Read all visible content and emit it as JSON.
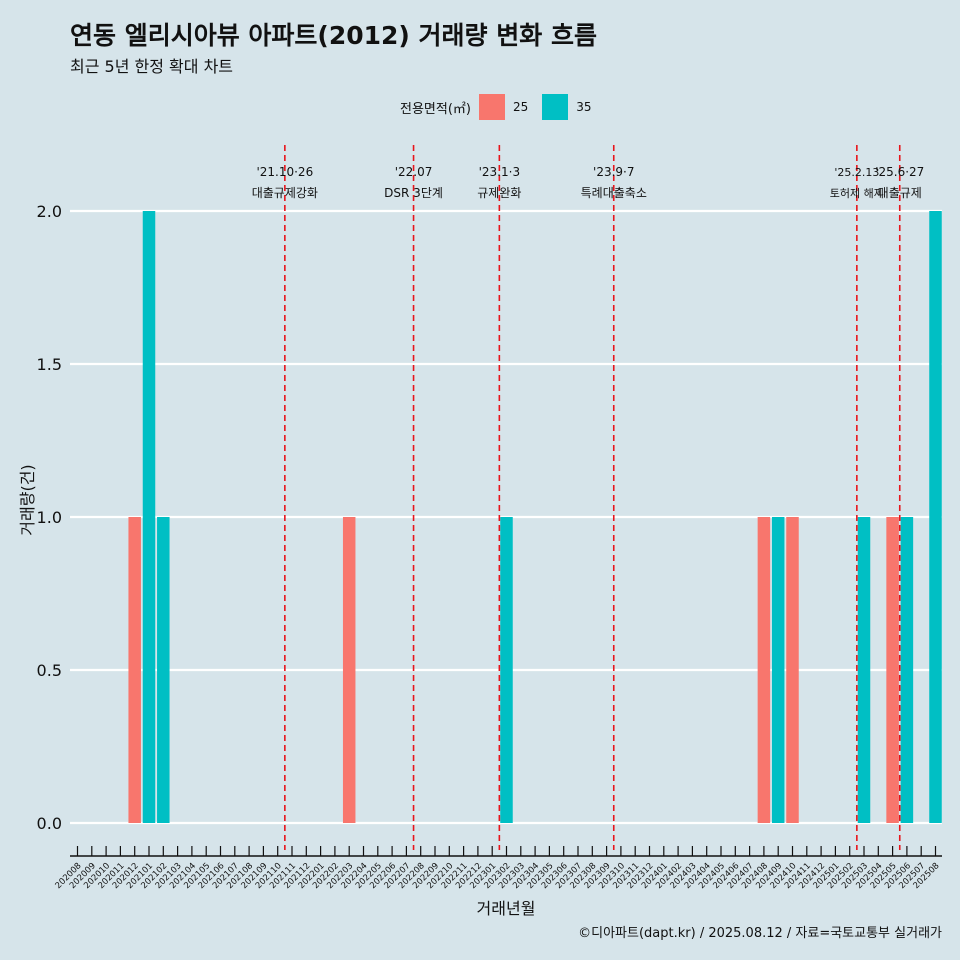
{
  "header": {
    "title": "연동 엘리시아뷰 아파트(2012) 거래량 변화 흐름",
    "subtitle": "최근 5년 한정 확대 차트"
  },
  "legend": {
    "title": "전용면적(㎡)",
    "items": [
      {
        "label": "25",
        "color": "#F8766D"
      },
      {
        "label": "35",
        "color": "#00BFC4"
      }
    ]
  },
  "caption": "©디아파트(dapt.kr) / 2025.08.12 / 자료=국토교통부 실거래가",
  "chart_data": {
    "type": "bar",
    "xlabel": "거래년월",
    "ylabel": "거래량(건)",
    "ylim": [
      0,
      2
    ],
    "yticks": [
      "0.0",
      "0.5",
      "1.0",
      "1.5",
      "2.0"
    ],
    "grid": true,
    "legend_position": "top",
    "categories": [
      "202008",
      "202009",
      "202010",
      "202011",
      "202012",
      "202101",
      "202102",
      "202103",
      "202104",
      "202105",
      "202106",
      "202107",
      "202108",
      "202109",
      "202110",
      "202111",
      "202112",
      "202201",
      "202202",
      "202203",
      "202204",
      "202205",
      "202206",
      "202207",
      "202208",
      "202209",
      "202210",
      "202211",
      "202212",
      "202301",
      "202302",
      "202303",
      "202304",
      "202305",
      "202306",
      "202307",
      "202308",
      "202309",
      "202310",
      "202311",
      "202312",
      "202401",
      "202402",
      "202403",
      "202404",
      "202405",
      "202406",
      "202407",
      "202408",
      "202409",
      "202410",
      "202411",
      "202412",
      "202501",
      "202502",
      "202503",
      "202504",
      "202505",
      "202506",
      "202507",
      "202508"
    ],
    "series": [
      {
        "name": "25",
        "color": "#F8766D",
        "points": [
          {
            "x": "202012",
            "y": 1
          },
          {
            "x": "202203",
            "y": 1
          },
          {
            "x": "202408",
            "y": 1
          },
          {
            "x": "202410",
            "y": 1
          },
          {
            "x": "202505",
            "y": 1
          }
        ]
      },
      {
        "name": "35",
        "color": "#00BFC4",
        "points": [
          {
            "x": "202101",
            "y": 2
          },
          {
            "x": "202102",
            "y": 1
          },
          {
            "x": "202302",
            "y": 1
          },
          {
            "x": "202409",
            "y": 1
          },
          {
            "x": "202503",
            "y": 1
          },
          {
            "x": "202506",
            "y": 1
          },
          {
            "x": "202508",
            "y": 2
          }
        ]
      }
    ],
    "annotations": [
      {
        "x": 14.5,
        "date": "'21.10·26",
        "text": "대출규제강화"
      },
      {
        "x": 23.5,
        "date": "'22.07",
        "text": "DSR 3단계"
      },
      {
        "x": 29.5,
        "date": "'23.1·3",
        "text": "규제완화"
      },
      {
        "x": 37.5,
        "date": "'23.9·7",
        "text": "특례대출축소"
      },
      {
        "x": 54.5,
        "date": "'25.2.13",
        "text": "토허제 해제"
      },
      {
        "x": 57.5,
        "date": "'25.6·27",
        "text": "대출규제"
      }
    ]
  }
}
